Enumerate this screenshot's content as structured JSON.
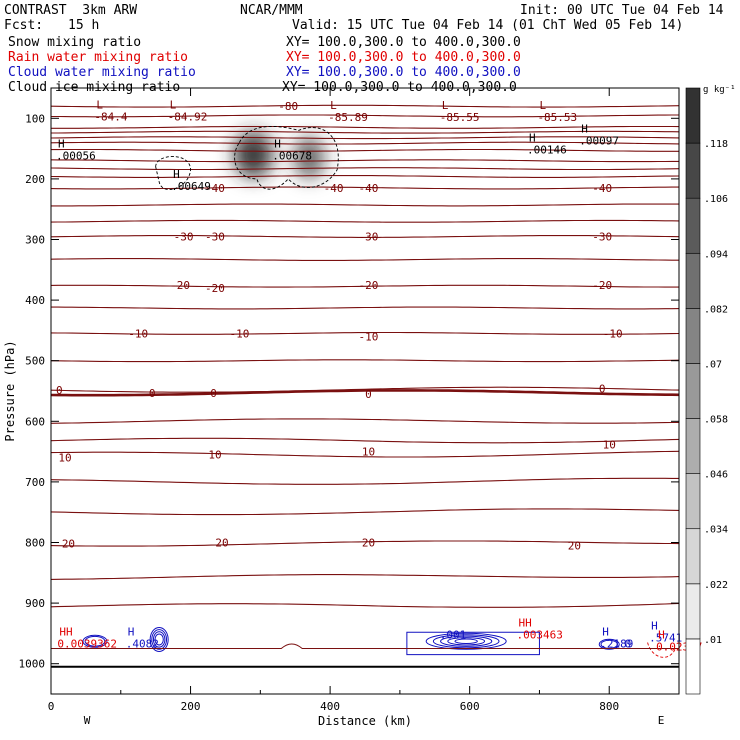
{
  "header": {
    "model": "CONTRAST  3km ARW",
    "center": "NCAR/MMM",
    "init": "Init: 00 UTC Tue 04 Feb 14",
    "fcst_label": "Fcst:",
    "fcst_value": "15 h",
    "valid": "Valid: 15 UTC Tue 04 Feb 14 (01 ChT Wed 05 Feb 14)"
  },
  "legend": [
    {
      "name": "Snow mixing ratio",
      "xy": "XY= 100.0,300.0 to 400.0,300.0",
      "color": "#000000"
    },
    {
      "name": "Rain water mixing ratio",
      "xy": "XY= 100.0,300.0 to 400.0,300.0",
      "color": "#e00000"
    },
    {
      "name": "Cloud water mixing ratio",
      "xy": "XY= 100.0,300.0 to 400.0,300.0",
      "color": "#1010c0"
    },
    {
      "name": "Cloud ice mixing ratio",
      "xy": "XY= 100.0,300.0 to 400.0,300.0",
      "color": "#000000"
    }
  ],
  "chart_data": {
    "type": "heatmap",
    "xlabel": "Distance (km)",
    "ylabel": "Pressure (hPa)",
    "xlim": [
      0,
      900
    ],
    "ylim": [
      1050,
      50
    ],
    "x_ticks": [
      0,
      200,
      400,
      600,
      800
    ],
    "y_ticks": [
      100,
      200,
      300,
      400,
      500,
      600,
      700,
      800,
      900,
      1000
    ],
    "direction_left": "W",
    "direction_right": "E",
    "colorbar_unit": "g kg⁻¹",
    "colorbar_ticks": [
      ".118",
      ".106",
      ".094",
      ".082",
      ".07",
      ".058",
      ".046",
      ".034",
      ".022",
      ".01"
    ],
    "colorbar_values": [
      0.01,
      0.022,
      0.034,
      0.046,
      0.058,
      0.07,
      0.082,
      0.094,
      0.106,
      0.118
    ],
    "shading_field": "Snow mixing ratio",
    "snow_maxima": [
      {
        "x": 290,
        "p": 160,
        "sx": 28,
        "sp": 38,
        "peak": 0.13
      },
      {
        "x": 370,
        "p": 165,
        "sx": 22,
        "sp": 35,
        "peak": 0.1
      }
    ],
    "isotherm_levels": [
      -80,
      -70,
      -60,
      -50,
      -40,
      -30,
      -20,
      -10,
      0,
      10,
      20
    ],
    "isotherm_labels": [
      {
        "text": "-80",
        "x": 340,
        "p": 80
      },
      {
        "text": "-40",
        "x": 235,
        "p": 215
      },
      {
        "text": "-40",
        "x": 405,
        "p": 215
      },
      {
        "text": "-40",
        "x": 455,
        "p": 215
      },
      {
        "text": "-40",
        "x": 790,
        "p": 215
      },
      {
        "text": "-30",
        "x": 190,
        "p": 295
      },
      {
        "text": "-30",
        "x": 235,
        "p": 295
      },
      {
        "text": "-30",
        "x": 455,
        "p": 295
      },
      {
        "text": "-30",
        "x": 790,
        "p": 295
      },
      {
        "text": "-20",
        "x": 185,
        "p": 375
      },
      {
        "text": "-20",
        "x": 235,
        "p": 380
      },
      {
        "text": "-20",
        "x": 455,
        "p": 375
      },
      {
        "text": "-20",
        "x": 790,
        "p": 375
      },
      {
        "text": "-10",
        "x": 125,
        "p": 455
      },
      {
        "text": "-10",
        "x": 270,
        "p": 455
      },
      {
        "text": "-10",
        "x": 455,
        "p": 460
      },
      {
        "text": "-10",
        "x": 805,
        "p": 455
      },
      {
        "text": "0",
        "x": 12,
        "p": 548
      },
      {
        "text": "0",
        "x": 145,
        "p": 553
      },
      {
        "text": "0",
        "x": 233,
        "p": 553
      },
      {
        "text": "0",
        "x": 455,
        "p": 555
      },
      {
        "text": "0",
        "x": 790,
        "p": 546
      },
      {
        "text": "10",
        "x": 20,
        "p": 660
      },
      {
        "text": "10",
        "x": 235,
        "p": 655
      },
      {
        "text": "10",
        "x": 455,
        "p": 650
      },
      {
        "text": "10",
        "x": 800,
        "p": 638
      },
      {
        "text": "20",
        "x": 25,
        "p": 802
      },
      {
        "text": "20",
        "x": 245,
        "p": 800
      },
      {
        "text": "20",
        "x": 455,
        "p": 800
      },
      {
        "text": "20",
        "x": 750,
        "p": 805
      }
    ],
    "extrema_labels": [
      {
        "mark": "L",
        "value": "-84.4",
        "x": 65,
        "p": 100,
        "color": "#7a0000"
      },
      {
        "mark": "L",
        "value": "-84.92",
        "x": 170,
        "p": 100,
        "color": "#7a0000"
      },
      {
        "mark": "L",
        "value": "-85.89",
        "x": 400,
        "p": 101,
        "color": "#7a0000"
      },
      {
        "mark": "L",
        "value": "-85.55",
        "x": 560,
        "p": 101,
        "color": "#7a0000"
      },
      {
        "mark": "L",
        "value": "-85.53",
        "x": 700,
        "p": 101,
        "color": "#7a0000"
      },
      {
        "mark": "H",
        "value": ".00056",
        "x": 10,
        "p": 165,
        "color": "#000000"
      },
      {
        "mark": "H",
        "value": ".00649",
        "x": 175,
        "p": 215,
        "color": "#000000"
      },
      {
        "mark": "H",
        "value": ".00678",
        "x": 320,
        "p": 165,
        "color": "#000000"
      },
      {
        "mark": "H",
        "value": ".00146",
        "x": 685,
        "p": 155,
        "color": "#000000"
      },
      {
        "mark": "H",
        "value": ".00097",
        "x": 760,
        "p": 140,
        "color": "#000000"
      },
      {
        "mark": "HH",
        "value": "0.0039362",
        "x": 12,
        "p": 970,
        "color": "#e00000"
      },
      {
        "mark": "H",
        "value": ".4082",
        "x": 110,
        "p": 970,
        "color": "#1010c0"
      },
      {
        "mark": "",
        "value": ".001",
        "x": 560,
        "p": 955,
        "color": "#1010c0"
      },
      {
        "mark": "HH",
        "value": ".003463",
        "x": 670,
        "p": 955,
        "color": "#e00000"
      },
      {
        "mark": "H",
        "value": ".2189",
        "x": 790,
        "p": 970,
        "color": "#1010c0"
      },
      {
        "mark": "",
        "value": "0",
        "x": 825,
        "p": 970,
        "color": "#1010c0"
      },
      {
        "mark": "H",
        "value": ".5741",
        "x": 860,
        "p": 960,
        "color": "#1010c0"
      },
      {
        "mark": "H",
        "value": "0.02337",
        "x": 870,
        "p": 975,
        "color": "#e00000"
      }
    ]
  }
}
